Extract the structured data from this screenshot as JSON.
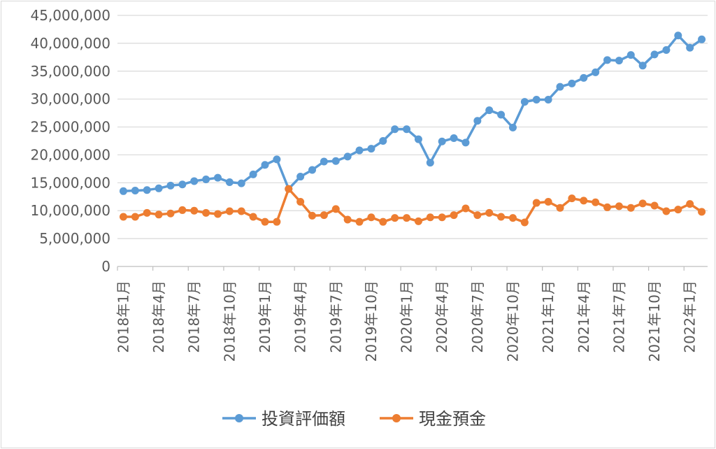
{
  "chart_data": {
    "type": "line",
    "y_ticks": [
      "0",
      "5,000,000",
      "10,000,000",
      "15,000,000",
      "20,000,000",
      "25,000,000",
      "30,000,000",
      "35,000,000",
      "40,000,000",
      "45,000,000"
    ],
    "ylim": [
      0,
      45000000
    ],
    "x_tick_labels": [
      {
        "index": 0,
        "label": "2018年1月"
      },
      {
        "index": 3,
        "label": "2018年4月"
      },
      {
        "index": 6,
        "label": "2018年7月"
      },
      {
        "index": 9,
        "label": "2018年10月"
      },
      {
        "index": 12,
        "label": "2019年1月"
      },
      {
        "index": 15,
        "label": "2019年4月"
      },
      {
        "index": 18,
        "label": "2019年7月"
      },
      {
        "index": 21,
        "label": "2019年10月"
      },
      {
        "index": 24,
        "label": "2020年1月"
      },
      {
        "index": 27,
        "label": "2020年4月"
      },
      {
        "index": 30,
        "label": "2020年7月"
      },
      {
        "index": 33,
        "label": "2020年10月"
      },
      {
        "index": 36,
        "label": "2021年1月"
      },
      {
        "index": 39,
        "label": "2021年4月"
      },
      {
        "index": 42,
        "label": "2021年7月"
      },
      {
        "index": 45,
        "label": "2021年10月"
      },
      {
        "index": 48,
        "label": "2022年1月"
      }
    ],
    "grid": "horizontal",
    "legend": "bottom",
    "series": [
      {
        "name": "投資評価額",
        "color": "#5B9BD5",
        "values": [
          13500000,
          13600000,
          13700000,
          14000000,
          14500000,
          14700000,
          15300000,
          15600000,
          15900000,
          15100000,
          14900000,
          16500000,
          18200000,
          19200000,
          13900000,
          16100000,
          17300000,
          18800000,
          18900000,
          19700000,
          20800000,
          21100000,
          22500000,
          24600000,
          24600000,
          22800000,
          18600000,
          22400000,
          23000000,
          22200000,
          26100000,
          28000000,
          27200000,
          24900000,
          29500000,
          29900000,
          29900000,
          32200000,
          32800000,
          33800000,
          34800000,
          37000000,
          36900000,
          37900000,
          36000000,
          38000000,
          38800000,
          41400000,
          39200000,
          40700000
        ]
      },
      {
        "name": "現金預金",
        "color": "#ED7D31",
        "values": [
          8900000,
          8900000,
          9600000,
          9300000,
          9500000,
          10100000,
          10000000,
          9600000,
          9400000,
          9900000,
          9900000,
          8900000,
          8000000,
          8000000,
          13900000,
          11600000,
          9100000,
          9200000,
          10300000,
          8400000,
          8000000,
          8800000,
          8000000,
          8700000,
          8700000,
          8100000,
          8800000,
          8800000,
          9200000,
          10400000,
          9200000,
          9600000,
          8900000,
          8700000,
          7900000,
          11400000,
          11600000,
          10500000,
          12200000,
          11800000,
          11500000,
          10600000,
          10800000,
          10500000,
          11300000,
          10900000,
          9900000,
          10200000,
          11200000,
          9800000
        ]
      }
    ]
  }
}
